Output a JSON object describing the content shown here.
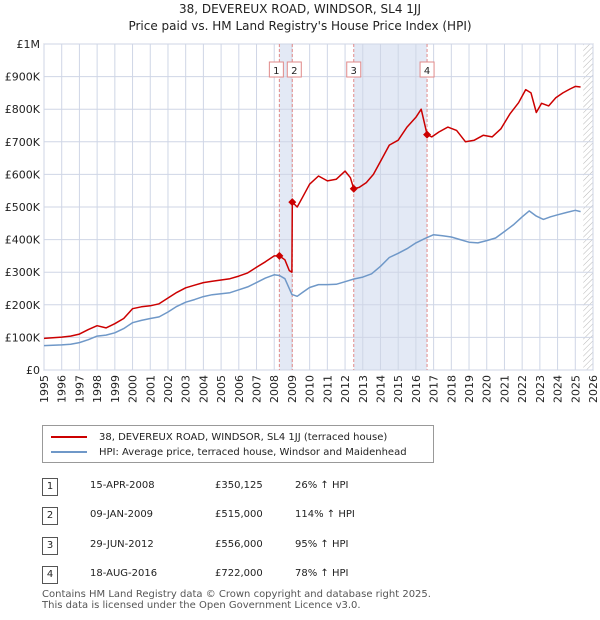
{
  "chart_data": {
    "type": "line",
    "title": "38, DEVEREUX ROAD, WINDSOR, SL4 1JJ",
    "subtitle": "Price paid vs. HM Land Registry's House Price Index (HPI)",
    "xlabel": "",
    "ylabel": "",
    "xlim": [
      1995,
      2026
    ],
    "ylim": [
      0,
      1000000
    ],
    "y_ticks": [
      {
        "value": 0,
        "label": "£0"
      },
      {
        "value": 100000,
        "label": "£100K"
      },
      {
        "value": 200000,
        "label": "£200K"
      },
      {
        "value": 300000,
        "label": "£300K"
      },
      {
        "value": 400000,
        "label": "£400K"
      },
      {
        "value": 500000,
        "label": "£500K"
      },
      {
        "value": 600000,
        "label": "£600K"
      },
      {
        "value": 700000,
        "label": "£700K"
      },
      {
        "value": 800000,
        "label": "£800K"
      },
      {
        "value": 900000,
        "label": "£900K"
      },
      {
        "value": 1000000,
        "label": "£1M"
      }
    ],
    "x_ticks": [
      "1995",
      "1996",
      "1997",
      "1998",
      "1999",
      "2000",
      "2001",
      "2002",
      "2003",
      "2004",
      "2005",
      "2006",
      "2007",
      "2008",
      "2009",
      "2010",
      "2011",
      "2012",
      "2013",
      "2014",
      "2015",
      "2016",
      "2017",
      "2018",
      "2019",
      "2020",
      "2021",
      "2022",
      "2023",
      "2024",
      "2025",
      "2026"
    ],
    "grid": true,
    "series": [
      {
        "name": "38, DEVEREUX ROAD, WINDSOR, SL4 1JJ (terraced house)",
        "color": "#cc0000",
        "points": [
          [
            1995.0,
            97000
          ],
          [
            1995.5,
            99000
          ],
          [
            1996.0,
            101000
          ],
          [
            1996.5,
            104000
          ],
          [
            1997.0,
            110000
          ],
          [
            1997.5,
            124000
          ],
          [
            1998.0,
            136000
          ],
          [
            1998.5,
            129000
          ],
          [
            1999.0,
            142000
          ],
          [
            1999.5,
            158000
          ],
          [
            2000.0,
            188000
          ],
          [
            2000.5,
            194000
          ],
          [
            2001.0,
            197000
          ],
          [
            2001.5,
            203000
          ],
          [
            2002.0,
            221000
          ],
          [
            2002.5,
            238000
          ],
          [
            2003.0,
            252000
          ],
          [
            2003.5,
            260000
          ],
          [
            2004.0,
            268000
          ],
          [
            2004.5,
            272000
          ],
          [
            2005.0,
            276000
          ],
          [
            2005.5,
            280000
          ],
          [
            2006.0,
            288000
          ],
          [
            2006.5,
            298000
          ],
          [
            2007.0,
            315000
          ],
          [
            2007.5,
            332000
          ],
          [
            2008.0,
            350000
          ],
          [
            2008.29,
            350125
          ],
          [
            2008.6,
            338000
          ],
          [
            2008.85,
            305000
          ],
          [
            2009.0,
            300000
          ],
          [
            2009.02,
            515000
          ],
          [
            2009.3,
            500000
          ],
          [
            2009.6,
            530000
          ],
          [
            2010.0,
            570000
          ],
          [
            2010.5,
            595000
          ],
          [
            2011.0,
            580000
          ],
          [
            2011.5,
            585000
          ],
          [
            2012.0,
            610000
          ],
          [
            2012.3,
            590000
          ],
          [
            2012.49,
            556000
          ],
          [
            2012.8,
            560000
          ],
          [
            2013.2,
            575000
          ],
          [
            2013.6,
            600000
          ],
          [
            2014.0,
            640000
          ],
          [
            2014.5,
            690000
          ],
          [
            2015.0,
            705000
          ],
          [
            2015.5,
            745000
          ],
          [
            2016.0,
            775000
          ],
          [
            2016.3,
            800000
          ],
          [
            2016.63,
            722000
          ],
          [
            2016.9,
            715000
          ],
          [
            2017.3,
            730000
          ],
          [
            2017.8,
            745000
          ],
          [
            2018.3,
            735000
          ],
          [
            2018.8,
            700000
          ],
          [
            2019.3,
            705000
          ],
          [
            2019.8,
            720000
          ],
          [
            2020.3,
            715000
          ],
          [
            2020.8,
            740000
          ],
          [
            2021.3,
            785000
          ],
          [
            2021.8,
            820000
          ],
          [
            2022.2,
            860000
          ],
          [
            2022.5,
            850000
          ],
          [
            2022.8,
            790000
          ],
          [
            2023.1,
            818000
          ],
          [
            2023.5,
            810000
          ],
          [
            2023.9,
            835000
          ],
          [
            2024.3,
            850000
          ],
          [
            2024.7,
            862000
          ],
          [
            2025.0,
            870000
          ],
          [
            2025.3,
            868000
          ]
        ]
      },
      {
        "name": "HPI: Average price, terraced house, Windsor and Maidenhead",
        "color": "#6f98c8",
        "points": [
          [
            1995.0,
            75000
          ],
          [
            1995.5,
            76000
          ],
          [
            1996.0,
            77000
          ],
          [
            1996.5,
            79000
          ],
          [
            1997.0,
            84000
          ],
          [
            1997.5,
            93000
          ],
          [
            1998.0,
            104000
          ],
          [
            1998.5,
            107000
          ],
          [
            1999.0,
            114000
          ],
          [
            1999.5,
            127000
          ],
          [
            2000.0,
            145000
          ],
          [
            2000.5,
            152000
          ],
          [
            2001.0,
            158000
          ],
          [
            2001.5,
            163000
          ],
          [
            2002.0,
            178000
          ],
          [
            2002.5,
            195000
          ],
          [
            2003.0,
            208000
          ],
          [
            2003.5,
            216000
          ],
          [
            2004.0,
            225000
          ],
          [
            2004.5,
            231000
          ],
          [
            2005.0,
            234000
          ],
          [
            2005.5,
            237000
          ],
          [
            2006.0,
            246000
          ],
          [
            2006.5,
            255000
          ],
          [
            2007.0,
            268000
          ],
          [
            2007.5,
            282000
          ],
          [
            2008.0,
            292000
          ],
          [
            2008.3,
            290000
          ],
          [
            2008.6,
            280000
          ],
          [
            2009.0,
            232000
          ],
          [
            2009.3,
            226000
          ],
          [
            2009.6,
            238000
          ],
          [
            2010.0,
            253000
          ],
          [
            2010.5,
            262000
          ],
          [
            2011.0,
            262000
          ],
          [
            2011.5,
            263000
          ],
          [
            2012.0,
            271000
          ],
          [
            2012.5,
            279000
          ],
          [
            2013.0,
            285000
          ],
          [
            2013.5,
            295000
          ],
          [
            2014.0,
            318000
          ],
          [
            2014.5,
            345000
          ],
          [
            2015.0,
            358000
          ],
          [
            2015.5,
            372000
          ],
          [
            2016.0,
            390000
          ],
          [
            2016.5,
            403000
          ],
          [
            2017.0,
            415000
          ],
          [
            2017.5,
            412000
          ],
          [
            2018.0,
            408000
          ],
          [
            2018.5,
            400000
          ],
          [
            2019.0,
            392000
          ],
          [
            2019.5,
            390000
          ],
          [
            2020.0,
            397000
          ],
          [
            2020.5,
            405000
          ],
          [
            2021.0,
            425000
          ],
          [
            2021.5,
            445000
          ],
          [
            2022.0,
            470000
          ],
          [
            2022.4,
            488000
          ],
          [
            2022.8,
            472000
          ],
          [
            2023.2,
            462000
          ],
          [
            2023.6,
            470000
          ],
          [
            2024.0,
            476000
          ],
          [
            2024.5,
            483000
          ],
          [
            2025.0,
            490000
          ],
          [
            2025.3,
            486000
          ]
        ]
      }
    ],
    "sales": [
      {
        "num": "1",
        "x": 2008.29,
        "value": 350125
      },
      {
        "num": "2",
        "x": 2009.02,
        "value": 515000
      },
      {
        "num": "3",
        "x": 2012.49,
        "value": 556000
      },
      {
        "num": "4",
        "x": 2016.63,
        "value": 722000
      }
    ],
    "data_end_year": 2025.45,
    "colors": {
      "band": "#e3e9f5",
      "grid": "#cfd6e6",
      "vline": "#e08a8a",
      "hatch": "#888888"
    }
  },
  "legend": {
    "property_label": "38, DEVEREUX ROAD, WINDSOR, SL4 1JJ (terraced house)",
    "hpi_label": "HPI: Average price, terraced house, Windsor and Maidenhead"
  },
  "sales_table": [
    {
      "num": "1",
      "date": "15-APR-2008",
      "price": "£350,125",
      "hpi": "26% ↑ HPI"
    },
    {
      "num": "2",
      "date": "09-JAN-2009",
      "price": "£515,000",
      "hpi": "114% ↑ HPI"
    },
    {
      "num": "3",
      "date": "29-JUN-2012",
      "price": "£556,000",
      "hpi": "95% ↑ HPI"
    },
    {
      "num": "4",
      "date": "18-AUG-2016",
      "price": "£722,000",
      "hpi": "78% ↑ HPI"
    }
  ],
  "footer": {
    "line1": "Contains HM Land Registry data © Crown copyright and database right 2025.",
    "line2": "This data is licensed under the Open Government Licence v3.0."
  }
}
